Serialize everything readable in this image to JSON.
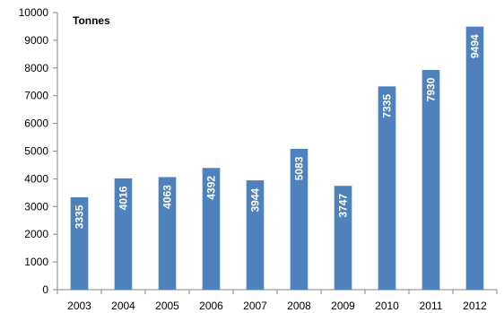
{
  "chart_data": {
    "type": "bar",
    "categories": [
      "2003",
      "2004",
      "2005",
      "2006",
      "2007",
      "2008",
      "2009",
      "2010",
      "2011",
      "2012"
    ],
    "values": [
      3335,
      4016,
      4063,
      4392,
      3944,
      5083,
      3747,
      7335,
      7930,
      9494
    ],
    "value_labels": [
      "3335",
      "4016",
      "4063",
      "4392",
      "3944",
      "5083",
      "3747",
      "7335",
      "7930",
      "9494"
    ],
    "unit_label": "Tonnes",
    "ylim": [
      0,
      10000
    ],
    "yticks": [
      0,
      1000,
      2000,
      3000,
      4000,
      5000,
      6000,
      7000,
      8000,
      9000,
      10000
    ],
    "ytick_labels": [
      "0",
      "1000",
      "2000",
      "3000",
      "4000",
      "5000",
      "6000",
      "7000",
      "8000",
      "9000",
      "10000"
    ],
    "grid": false,
    "legend": "none",
    "bar_color": "#4f81bd",
    "data_label_color": "#ffffff"
  }
}
